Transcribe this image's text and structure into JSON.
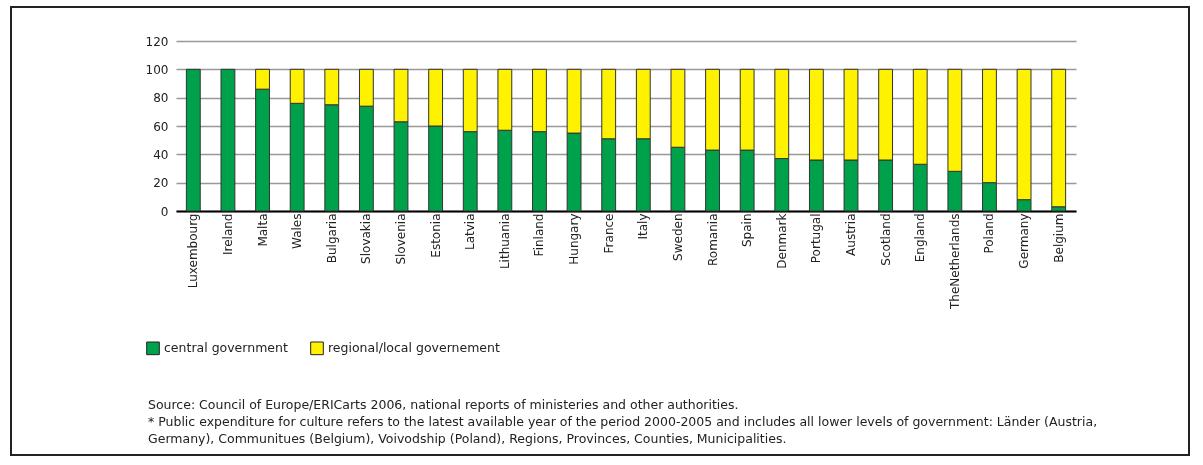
{
  "chart_data": {
    "type": "bar",
    "stacked": true,
    "categories": [
      "Luxembourg",
      "Ireland",
      "Malta",
      "Wales",
      "Bulgaria",
      "Slovakia",
      "Slovenia",
      "Estonia",
      "Latvia",
      "Lithuania",
      "Finland",
      "Hungary",
      "France",
      "Italy",
      "Sweden",
      "Romania",
      "Spain",
      "Denmark",
      "Portugal",
      "Austria",
      "Scotland",
      "England",
      "TheNetherlands",
      "Poland",
      "Germany",
      "Belgium"
    ],
    "series": [
      {
        "name": "central government",
        "color": "#00a14b",
        "values": [
          100,
          100,
          86,
          76,
          75,
          74,
          63,
          60,
          56,
          57,
          56,
          55,
          51,
          51,
          45,
          43,
          43,
          37,
          36,
          36,
          36,
          33,
          28,
          20,
          8,
          3
        ]
      },
      {
        "name": "regional/local governement",
        "color": "#fff200",
        "values": [
          null,
          null,
          14,
          24,
          25,
          26,
          37,
          40,
          44,
          43,
          44,
          45,
          49,
          49,
          55,
          57,
          57,
          63,
          64,
          64,
          64,
          67,
          72,
          80,
          92,
          97
        ]
      }
    ],
    "ylim": [
      0,
      120
    ],
    "yticks": [
      0,
      20,
      40,
      60,
      80,
      100,
      120
    ],
    "grid": "y",
    "legend": "bottom left",
    "annotations": [
      "Source: Council of Europe/ERICarts 2006, national reports of ministeries and other authorities.",
      "* Public expenditure for culture refers to the latest available year of the period 2000-2005 and includes all lower levels of government: Länder (Austria, Germany), Communitues (Belgium), Voivodship (Poland), Regions, Provinces, Counties, Municipalities."
    ]
  }
}
